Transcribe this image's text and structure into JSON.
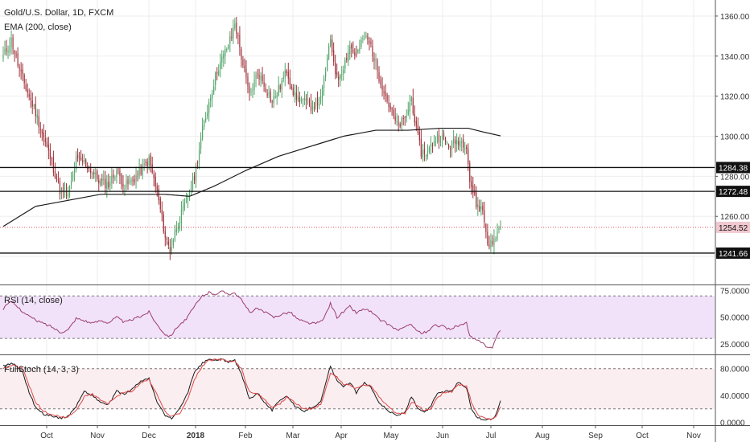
{
  "header": {
    "symbol": "Gold/U.S. Dollar, 1D, FXCM",
    "indicator": "EMA (200, close)"
  },
  "colors": {
    "bull": "#53a56a",
    "bear": "#a0323a",
    "ema": "#1a1a1a",
    "price_line": "#e05060",
    "rsi_line": "#9c3d6e",
    "rsi_band": "#f1e2fa",
    "stoch_k": "#1a1a1a",
    "stoch_d": "#e04848",
    "stoch_band": "#fbeef0",
    "grid": "#eeeeee"
  },
  "chart_data": [
    {
      "type": "candlestick",
      "title": "Gold/U.S. Dollar, 1D, FXCM",
      "ylim": [
        1226,
        1368
      ],
      "yticks": [
        1240,
        1260,
        1280,
        1300,
        1320,
        1340,
        1360
      ],
      "ytick_labels": [
        "",
        "1260.00",
        "1280.00",
        "1300.00",
        "1320.00",
        "1340.00",
        "1360.00"
      ],
      "xtick_labels": [
        "Oct",
        "Nov",
        "Dec",
        "2018",
        "Feb",
        "Mar",
        "Apr",
        "May",
        "Jun",
        "Jul",
        "Aug",
        "Sep",
        "Oct",
        "Nov"
      ],
      "last_price": 1254.52,
      "last_price_label": "1254.52",
      "horizontal_levels": [
        {
          "value": 1284.38,
          "label": "1284.38"
        },
        {
          "value": 1272.48,
          "label": "1272.48"
        },
        {
          "value": 1241.66,
          "label": "1241.66"
        }
      ],
      "close_anchors": [
        [
          0,
          1340
        ],
        [
          5,
          1348
        ],
        [
          10,
          1333
        ],
        [
          15,
          1322
        ],
        [
          20,
          1312
        ],
        [
          25,
          1299
        ],
        [
          30,
          1287
        ],
        [
          35,
          1273
        ],
        [
          40,
          1270
        ],
        [
          45,
          1288
        ],
        [
          50,
          1287
        ],
        [
          55,
          1282
        ],
        [
          60,
          1277
        ],
        [
          65,
          1276
        ],
        [
          70,
          1283
        ],
        [
          75,
          1275
        ],
        [
          80,
          1278
        ],
        [
          85,
          1283
        ],
        [
          90,
          1288
        ],
        [
          95,
          1272
        ],
        [
          100,
          1250
        ],
        [
          103,
          1243
        ],
        [
          107,
          1255
        ],
        [
          112,
          1265
        ],
        [
          118,
          1280
        ],
        [
          123,
          1303
        ],
        [
          127,
          1317
        ],
        [
          132,
          1333
        ],
        [
          136,
          1340
        ],
        [
          141,
          1350
        ],
        [
          143,
          1357
        ],
        [
          147,
          1340
        ],
        [
          152,
          1320
        ],
        [
          157,
          1332
        ],
        [
          161,
          1326
        ],
        [
          166,
          1317
        ],
        [
          171,
          1325
        ],
        [
          175,
          1333
        ],
        [
          180,
          1320
        ],
        [
          185,
          1318
        ],
        [
          190,
          1315
        ],
        [
          196,
          1318
        ],
        [
          202,
          1348
        ],
        [
          206,
          1328
        ],
        [
          210,
          1335
        ],
        [
          214,
          1345
        ],
        [
          218,
          1340
        ],
        [
          223,
          1350
        ],
        [
          227,
          1345
        ],
        [
          232,
          1330
        ],
        [
          237,
          1318
        ],
        [
          243,
          1305
        ],
        [
          248,
          1308
        ],
        [
          252,
          1319
        ],
        [
          255,
          1303
        ],
        [
          258,
          1292
        ],
        [
          262,
          1292
        ],
        [
          266,
          1298
        ],
        [
          270,
          1300
        ],
        [
          275,
          1295
        ],
        [
          281,
          1298
        ],
        [
          286,
          1296
        ],
        [
          288,
          1278
        ],
        [
          292,
          1266
        ],
        [
          296,
          1263
        ],
        [
          299,
          1247
        ],
        [
          302,
          1246
        ],
        [
          305,
          1252
        ],
        [
          307,
          1254.52
        ]
      ],
      "ema_anchors": [
        [
          0,
          1255
        ],
        [
          20,
          1265
        ],
        [
          40,
          1268
        ],
        [
          60,
          1271
        ],
        [
          80,
          1271
        ],
        [
          100,
          1271
        ],
        [
          115,
          1270
        ],
        [
          130,
          1275
        ],
        [
          150,
          1283
        ],
        [
          170,
          1290
        ],
        [
          190,
          1295
        ],
        [
          210,
          1300
        ],
        [
          230,
          1303
        ],
        [
          250,
          1303
        ],
        [
          270,
          1304
        ],
        [
          287,
          1304
        ],
        [
          297,
          1302
        ],
        [
          308,
          1300
        ]
      ]
    },
    {
      "type": "line",
      "title": "RSI (14, close)",
      "ylim": [
        15,
        80
      ],
      "yticks": [
        25,
        50,
        75
      ],
      "ytick_labels": [
        "25.0000",
        "50.0000",
        "75.0000"
      ],
      "band": [
        30,
        70
      ],
      "anchors": [
        [
          0,
          58
        ],
        [
          5,
          65
        ],
        [
          10,
          58
        ],
        [
          15,
          52
        ],
        [
          20,
          47
        ],
        [
          25,
          44
        ],
        [
          30,
          41
        ],
        [
          35,
          36
        ],
        [
          40,
          38
        ],
        [
          45,
          49
        ],
        [
          50,
          47
        ],
        [
          55,
          44
        ],
        [
          60,
          47
        ],
        [
          65,
          45
        ],
        [
          70,
          50
        ],
        [
          75,
          45
        ],
        [
          80,
          48
        ],
        [
          85,
          51
        ],
        [
          90,
          55
        ],
        [
          95,
          43
        ],
        [
          100,
          34
        ],
        [
          103,
          32
        ],
        [
          108,
          42
        ],
        [
          113,
          48
        ],
        [
          118,
          60
        ],
        [
          123,
          70
        ],
        [
          127,
          73
        ],
        [
          131,
          72
        ],
        [
          135,
          74
        ],
        [
          140,
          72
        ],
        [
          143,
          73
        ],
        [
          147,
          66
        ],
        [
          152,
          55
        ],
        [
          157,
          58
        ],
        [
          162,
          54
        ],
        [
          167,
          50
        ],
        [
          172,
          53
        ],
        [
          177,
          55
        ],
        [
          182,
          48
        ],
        [
          187,
          45
        ],
        [
          192,
          44
        ],
        [
          197,
          46
        ],
        [
          202,
          63
        ],
        [
          206,
          50
        ],
        [
          210,
          55
        ],
        [
          214,
          60
        ],
        [
          218,
          54
        ],
        [
          223,
          58
        ],
        [
          227,
          55
        ],
        [
          232,
          48
        ],
        [
          237,
          44
        ],
        [
          243,
          38
        ],
        [
          248,
          40
        ],
        [
          252,
          44
        ],
        [
          255,
          38
        ],
        [
          258,
          35
        ],
        [
          262,
          36
        ],
        [
          266,
          42
        ],
        [
          270,
          42
        ],
        [
          275,
          39
        ],
        [
          281,
          42
        ],
        [
          286,
          44
        ],
        [
          288,
          32
        ],
        [
          292,
          28
        ],
        [
          296,
          27
        ],
        [
          299,
          21
        ],
        [
          302,
          22
        ],
        [
          305,
          33
        ],
        [
          307,
          37
        ]
      ]
    },
    {
      "type": "line",
      "title": "FullStoch (14, 3, 3)",
      "ylim": [
        -3,
        100
      ],
      "yticks": [
        0,
        40,
        80
      ],
      "ytick_labels": [
        "0.0000",
        "40.0000",
        "80.0000"
      ],
      "band": [
        20,
        80
      ],
      "series": [
        {
          "color_key": "stoch_k",
          "anchors": [
            [
              0,
              85
            ],
            [
              6,
              88
            ],
            [
              12,
              75
            ],
            [
              16,
              45
            ],
            [
              20,
              22
            ],
            [
              25,
              12
            ],
            [
              30,
              10
            ],
            [
              35,
              6
            ],
            [
              40,
              9
            ],
            [
              45,
              24
            ],
            [
              50,
              46
            ],
            [
              55,
              40
            ],
            [
              60,
              30
            ],
            [
              65,
              26
            ],
            [
              70,
              46
            ],
            [
              75,
              42
            ],
            [
              80,
              50
            ],
            [
              85,
              62
            ],
            [
              90,
              65
            ],
            [
              95,
              30
            ],
            [
              100,
              10
            ],
            [
              104,
              6
            ],
            [
              109,
              20
            ],
            [
              114,
              45
            ],
            [
              118,
              74
            ],
            [
              123,
              88
            ],
            [
              127,
              94
            ],
            [
              131,
              92
            ],
            [
              135,
              94
            ],
            [
              139,
              90
            ],
            [
              143,
              92
            ],
            [
              147,
              72
            ],
            [
              152,
              35
            ],
            [
              157,
              44
            ],
            [
              162,
              28
            ],
            [
              166,
              18
            ],
            [
              171,
              34
            ],
            [
              175,
              40
            ],
            [
              180,
              24
            ],
            [
              185,
              16
            ],
            [
              190,
              22
            ],
            [
              196,
              30
            ],
            [
              202,
              84
            ],
            [
              206,
              62
            ],
            [
              210,
              52
            ],
            [
              214,
              60
            ],
            [
              218,
              44
            ],
            [
              223,
              60
            ],
            [
              227,
              52
            ],
            [
              232,
              30
            ],
            [
              237,
              18
            ],
            [
              243,
              10
            ],
            [
              248,
              15
            ],
            [
              252,
              38
            ],
            [
              256,
              20
            ],
            [
              260,
              14
            ],
            [
              264,
              24
            ],
            [
              268,
              44
            ],
            [
              272,
              45
            ],
            [
              277,
              48
            ],
            [
              281,
              60
            ],
            [
              286,
              52
            ],
            [
              289,
              20
            ],
            [
              293,
              6
            ],
            [
              297,
              4
            ],
            [
              301,
              4
            ],
            [
              304,
              10
            ],
            [
              307,
              33
            ]
          ]
        },
        {
          "color_key": "stoch_d",
          "anchors": [
            [
              0,
              80
            ],
            [
              6,
              86
            ],
            [
              12,
              80
            ],
            [
              16,
              55
            ],
            [
              20,
              30
            ],
            [
              25,
              16
            ],
            [
              30,
              12
            ],
            [
              35,
              8
            ],
            [
              40,
              8
            ],
            [
              45,
              18
            ],
            [
              50,
              38
            ],
            [
              55,
              42
            ],
            [
              60,
              34
            ],
            [
              65,
              28
            ],
            [
              70,
              40
            ],
            [
              75,
              44
            ],
            [
              80,
              47
            ],
            [
              85,
              58
            ],
            [
              90,
              64
            ],
            [
              95,
              40
            ],
            [
              100,
              16
            ],
            [
              104,
              8
            ],
            [
              109,
              14
            ],
            [
              114,
              36
            ],
            [
              118,
              64
            ],
            [
              123,
              84
            ],
            [
              127,
              92
            ],
            [
              131,
              93
            ],
            [
              135,
              93
            ],
            [
              139,
              91
            ],
            [
              143,
              91
            ],
            [
              147,
              80
            ],
            [
              152,
              45
            ],
            [
              157,
              42
            ],
            [
              162,
              32
            ],
            [
              166,
              22
            ],
            [
              171,
              28
            ],
            [
              175,
              38
            ],
            [
              180,
              30
            ],
            [
              185,
              20
            ],
            [
              190,
              20
            ],
            [
              196,
              26
            ],
            [
              202,
              72
            ],
            [
              206,
              68
            ],
            [
              210,
              56
            ],
            [
              214,
              56
            ],
            [
              218,
              50
            ],
            [
              223,
              56
            ],
            [
              227,
              55
            ],
            [
              232,
              38
            ],
            [
              237,
              24
            ],
            [
              243,
              13
            ],
            [
              248,
              13
            ],
            [
              252,
              30
            ],
            [
              256,
              25
            ],
            [
              260,
              17
            ],
            [
              264,
              20
            ],
            [
              268,
              36
            ],
            [
              272,
              44
            ],
            [
              277,
              46
            ],
            [
              281,
              56
            ],
            [
              286,
              55
            ],
            [
              289,
              30
            ],
            [
              293,
              10
            ],
            [
              297,
              6
            ],
            [
              301,
              4
            ],
            [
              304,
              7
            ],
            [
              307,
              24
            ]
          ]
        }
      ]
    }
  ]
}
